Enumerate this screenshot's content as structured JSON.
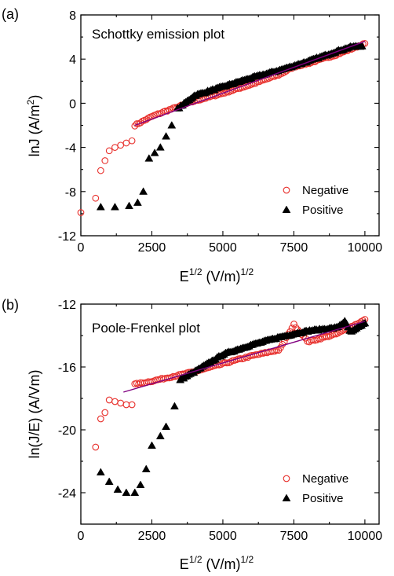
{
  "chart_data": [
    {
      "type": "scatter",
      "panel_label": "(a)",
      "title": "Schottky emission plot",
      "xlabel_main": "E",
      "xlabel_sup": "1/2",
      "xlabel_mid": " (V/m)",
      "xlabel_sup2": "1/2",
      "ylabel_main": "lnJ (A/m",
      "ylabel_sup": "2",
      "ylabel_end": ")",
      "xlim": [
        0,
        10500
      ],
      "ylim": [
        -12,
        8
      ],
      "xticks": [
        0,
        2500,
        5000,
        7500,
        10000
      ],
      "yticks": [
        -12,
        -8,
        -4,
        0,
        4,
        8
      ],
      "xtick_labels": [
        "0",
        "2500",
        "5000",
        "7500",
        "10000"
      ],
      "ytick_labels": [
        "-12",
        "-8",
        "-4",
        "0",
        "4",
        "8"
      ],
      "legend_position": "bottom-right",
      "series": [
        {
          "name": "Negative",
          "marker": "open-circle",
          "color": "#e8302c",
          "anchors": [
            [
              0,
              -9.9
            ],
            [
              520,
              -8.6
            ],
            [
              700,
              -6.1
            ],
            [
              850,
              -5.2
            ],
            [
              1000,
              -4.3
            ],
            [
              1200,
              -4.0
            ],
            [
              1400,
              -3.8
            ],
            [
              1600,
              -3.6
            ],
            [
              1800,
              -3.4
            ],
            [
              1900,
              -2.0
            ],
            [
              2500,
              -1.2
            ],
            [
              3000,
              -0.7
            ],
            [
              4000,
              0.2
            ],
            [
              5000,
              0.9
            ],
            [
              6000,
              1.7
            ],
            [
              7000,
              2.6
            ],
            [
              7500,
              3.3
            ],
            [
              8000,
              3.6
            ],
            [
              9000,
              4.4
            ],
            [
              10000,
              5.4
            ]
          ],
          "dense_range": [
            1900,
            10000
          ],
          "dense_count": 120
        },
        {
          "name": "Positive",
          "marker": "filled-triangle",
          "color": "#000000",
          "anchors": [
            [
              700,
              -9.4
            ],
            [
              1200,
              -9.4
            ],
            [
              1700,
              -9.3
            ],
            [
              2000,
              -9.0
            ],
            [
              2200,
              -8.0
            ],
            [
              2400,
              -5.0
            ],
            [
              2600,
              -4.5
            ],
            [
              2800,
              -4.0
            ],
            [
              3000,
              -3.0
            ],
            [
              3200,
              -2.0
            ],
            [
              3400,
              -0.5
            ],
            [
              4000,
              0.7
            ],
            [
              5000,
              1.5
            ],
            [
              6000,
              2.3
            ],
            [
              7000,
              3.0
            ],
            [
              8000,
              3.8
            ],
            [
              9000,
              4.7
            ],
            [
              9500,
              5.1
            ],
            [
              9900,
              5.2
            ]
          ],
          "dense_range": [
            3400,
            9900
          ],
          "dense_count": 110
        }
      ],
      "fit_line": {
        "color": "#800080",
        "x": [
          1900,
          10000
        ],
        "y": [
          -2.0,
          5.6
        ]
      }
    },
    {
      "type": "scatter",
      "panel_label": "(b)",
      "title": "Poole-Frenkel plot",
      "xlabel_main": "E",
      "xlabel_sup": "1/2",
      "xlabel_mid": " (V/m)",
      "xlabel_sup2": "1/2",
      "ylabel_main": "ln(J/E) (A/Vm)",
      "ylabel_sup": "",
      "ylabel_end": "",
      "xlim": [
        0,
        10500
      ],
      "ylim": [
        -26,
        -12
      ],
      "xticks": [
        0,
        2500,
        5000,
        7500,
        10000
      ],
      "yticks": [
        -24,
        -20,
        -16,
        -12
      ],
      "xtick_labels": [
        "0",
        "2500",
        "5000",
        "7500",
        "10000"
      ],
      "ytick_labels": [
        "-24",
        "-20",
        "-16",
        "-12"
      ],
      "legend_position": "bottom-right",
      "series": [
        {
          "name": "Negative",
          "marker": "open-circle",
          "color": "#e8302c",
          "anchors": [
            [
              520,
              -21.1
            ],
            [
              700,
              -19.3
            ],
            [
              850,
              -18.9
            ],
            [
              1000,
              -18.1
            ],
            [
              1200,
              -18.2
            ],
            [
              1400,
              -18.3
            ],
            [
              1600,
              -18.4
            ],
            [
              1800,
              -18.4
            ],
            [
              1900,
              -17.1
            ],
            [
              2500,
              -16.9
            ],
            [
              3000,
              -16.7
            ],
            [
              4000,
              -16.3
            ],
            [
              5000,
              -15.8
            ],
            [
              6000,
              -15.3
            ],
            [
              7000,
              -14.9
            ],
            [
              7500,
              -13.3
            ],
            [
              8000,
              -14.4
            ],
            [
              9000,
              -13.9
            ],
            [
              10000,
              -13.0
            ]
          ],
          "dense_range": [
            1900,
            10000
          ],
          "dense_count": 120
        },
        {
          "name": "Positive",
          "marker": "filled-triangle",
          "color": "#000000",
          "anchors": [
            [
              700,
              -22.7
            ],
            [
              1000,
              -23.3
            ],
            [
              1300,
              -23.8
            ],
            [
              1600,
              -24.0
            ],
            [
              1900,
              -24.0
            ],
            [
              2100,
              -23.5
            ],
            [
              2300,
              -22.5
            ],
            [
              2500,
              -21.0
            ],
            [
              2800,
              -20.4
            ],
            [
              3000,
              -19.8
            ],
            [
              3300,
              -18.5
            ],
            [
              3500,
              -16.8
            ],
            [
              4000,
              -16.3
            ],
            [
              5000,
              -15.2
            ],
            [
              6000,
              -14.6
            ],
            [
              7000,
              -14.1
            ],
            [
              8000,
              -13.7
            ],
            [
              9000,
              -13.5
            ],
            [
              9300,
              -13.1
            ],
            [
              9500,
              -13.8
            ],
            [
              10000,
              -13.2
            ]
          ],
          "dense_range": [
            3500,
            10000
          ],
          "dense_count": 110
        }
      ],
      "fit_line": {
        "color": "#800080",
        "x": [
          1500,
          10000
        ],
        "y": [
          -17.6,
          -13.1
        ]
      }
    }
  ]
}
